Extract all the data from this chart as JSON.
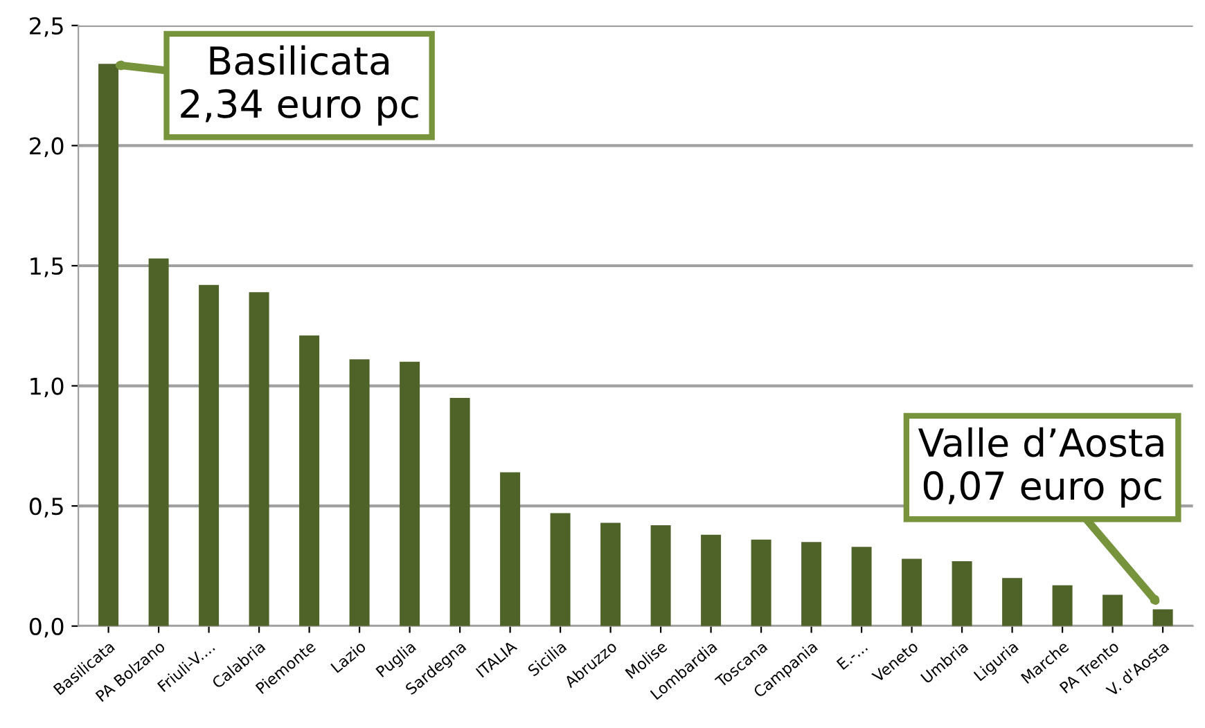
{
  "chart_data": {
    "type": "bar",
    "categories": [
      "Basilicata",
      "PA Bolzano",
      "Friuli-V....",
      "Calabria",
      "Piemonte",
      "Lazio",
      "Puglia",
      "Sardegna",
      "ITALIA",
      "Sicilia",
      "Abruzzo",
      "Molise",
      "Lombardia",
      "Toscana",
      "Campania",
      "E.-...",
      "Veneto",
      "Umbria",
      "Liguria",
      "Marche",
      "PA Trento",
      "V. d'Aosta"
    ],
    "values": [
      2.34,
      1.53,
      1.42,
      1.39,
      1.21,
      1.11,
      1.1,
      0.95,
      0.64,
      0.47,
      0.43,
      0.42,
      0.38,
      0.36,
      0.35,
      0.33,
      0.28,
      0.27,
      0.2,
      0.17,
      0.13,
      0.07
    ],
    "color": "#4f6228",
    "ylim": [
      0,
      2.5
    ],
    "yticks": [
      {
        "value": 0,
        "label": "0,0"
      },
      {
        "value": 0.5,
        "label": "0,5"
      },
      {
        "value": 1.0,
        "label": "1,0"
      },
      {
        "value": 1.5,
        "label": "1,5"
      },
      {
        "value": 2.0,
        "label": "2,0"
      },
      {
        "value": 2.5,
        "label": "2,5"
      }
    ],
    "grid": "y",
    "annotations": [
      {
        "text": "Basilicata\n2,34 euro pc",
        "x": "Basilicata",
        "y": 2.34
      },
      {
        "text": "Valle d’Aosta\n0,07 euro pc",
        "x": "V. d'Aosta",
        "y": 0.07
      }
    ]
  }
}
